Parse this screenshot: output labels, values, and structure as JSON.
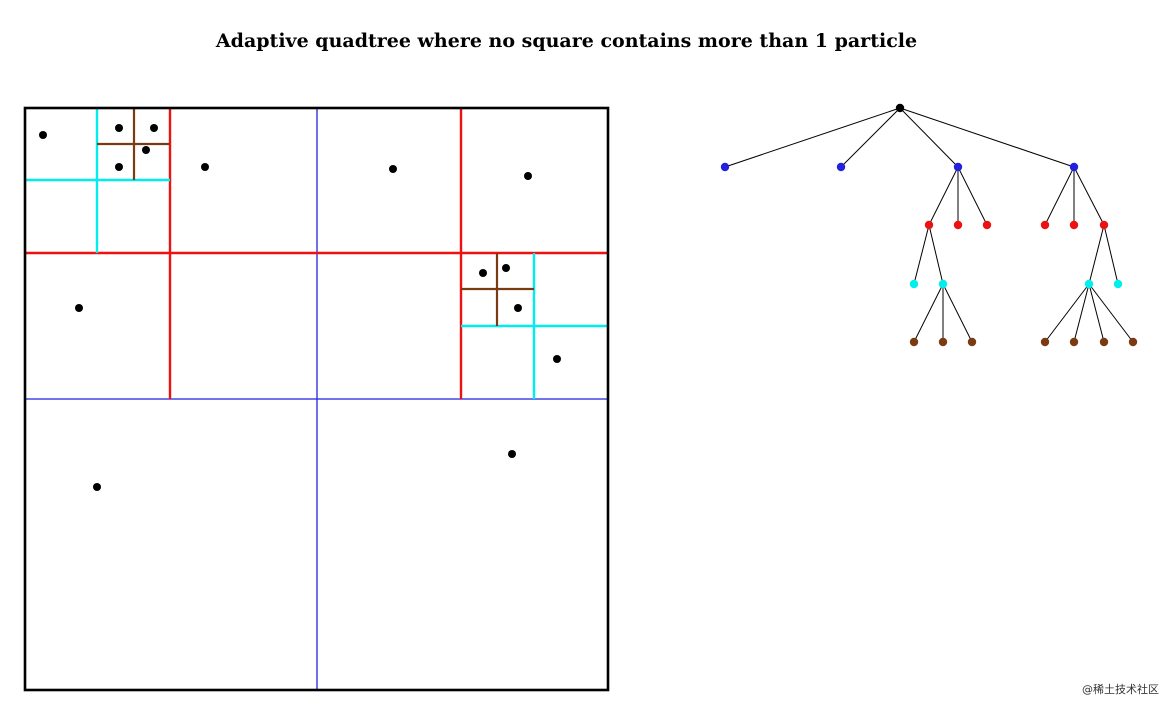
{
  "title": "Adaptive quadtree where no square contains more than 1 particle",
  "watermark": "@稀土技术社区",
  "colors": {
    "outline": "#000000",
    "level1": "#2222dd",
    "level2": "#ee1111",
    "level3": "#00eeee",
    "level4": "#7a3a12",
    "particle": "#000000"
  }
}
